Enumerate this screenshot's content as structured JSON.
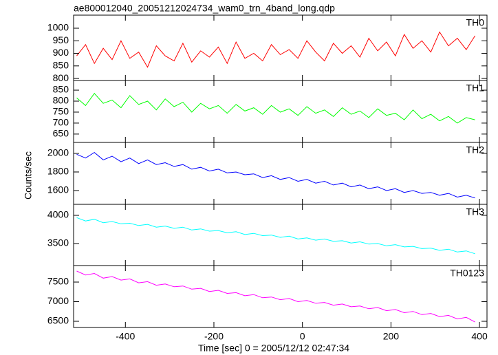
{
  "chart_data": {
    "type": "line",
    "title": "ae800012040_20051212024734_wam0_trn_4band_long.qdp",
    "xlabel": "Time [sec] 0 = 2005/12/12 02:47:34",
    "ylabel": "Counts/sec",
    "xlim": [
      -517,
      417
    ],
    "xticks": [
      -400,
      -200,
      0,
      200,
      400
    ],
    "x": [
      -510,
      -490,
      -470,
      -450,
      -430,
      -410,
      -390,
      -370,
      -350,
      -330,
      -310,
      -290,
      -270,
      -250,
      -230,
      -210,
      -190,
      -170,
      -150,
      -130,
      -110,
      -90,
      -70,
      -50,
      -30,
      -10,
      10,
      30,
      50,
      70,
      90,
      110,
      130,
      150,
      170,
      190,
      210,
      230,
      250,
      270,
      290,
      310,
      330,
      350,
      370,
      390
    ],
    "panels": [
      {
        "name": "TH0",
        "color": "#ff0000",
        "ylim": [
          792,
          1052
        ],
        "yticks": [
          800,
          850,
          900,
          950,
          1000
        ],
        "values": [
          890,
          935,
          860,
          920,
          875,
          950,
          880,
          905,
          845,
          930,
          890,
          870,
          940,
          865,
          910,
          885,
          925,
          860,
          945,
          880,
          900,
          870,
          935,
          895,
          915,
          880,
          950,
          905,
          870,
          940,
          900,
          930,
          885,
          960,
          910,
          945,
          890,
          975,
          920,
          950,
          905,
          985,
          930,
          960,
          915,
          970
        ]
      },
      {
        "name": "TH1",
        "color": "#00ff00",
        "ylim": [
          612,
          894
        ],
        "yticks": [
          650,
          700,
          750,
          800,
          850
        ],
        "values": [
          815,
          780,
          835,
          790,
          805,
          770,
          825,
          785,
          800,
          760,
          810,
          775,
          795,
          750,
          790,
          765,
          780,
          745,
          785,
          755,
          770,
          740,
          780,
          750,
          765,
          735,
          775,
          745,
          760,
          730,
          770,
          740,
          755,
          725,
          765,
          735,
          745,
          715,
          760,
          720,
          740,
          710,
          730,
          700,
          725,
          715
        ]
      },
      {
        "name": "TH2",
        "color": "#0000ff",
        "ylim": [
          1452,
          2118
        ],
        "yticks": [
          1600,
          1800,
          2000
        ],
        "values": [
          1990,
          1950,
          2010,
          1930,
          1970,
          1910,
          1950,
          1890,
          1930,
          1880,
          1900,
          1860,
          1880,
          1830,
          1850,
          1810,
          1830,
          1790,
          1800,
          1770,
          1780,
          1740,
          1760,
          1720,
          1740,
          1700,
          1720,
          1680,
          1700,
          1660,
          1680,
          1640,
          1660,
          1620,
          1640,
          1600,
          1620,
          1580,
          1600,
          1570,
          1580,
          1550,
          1570,
          1530,
          1550,
          1520
        ]
      },
      {
        "name": "TH3",
        "color": "#00ffff",
        "ylim": [
          3110,
          4195
        ],
        "yticks": [
          3500,
          4000
        ],
        "values": [
          3960,
          3900,
          3930,
          3870,
          3890,
          3850,
          3860,
          3820,
          3840,
          3790,
          3810,
          3770,
          3790,
          3740,
          3760,
          3720,
          3730,
          3690,
          3710,
          3660,
          3680,
          3640,
          3650,
          3610,
          3630,
          3580,
          3600,
          3560,
          3580,
          3540,
          3550,
          3510,
          3530,
          3490,
          3500,
          3460,
          3480,
          3440,
          3450,
          3410,
          3420,
          3380,
          3400,
          3350,
          3370,
          3320
        ]
      },
      {
        "name": "TH0123",
        "color": "#ff00ff",
        "ylim": [
          6342,
          7921
        ],
        "yticks": [
          6500,
          7000,
          7500
        ],
        "values": [
          7780,
          7680,
          7720,
          7600,
          7640,
          7550,
          7580,
          7480,
          7510,
          7420,
          7450,
          7380,
          7400,
          7320,
          7340,
          7260,
          7290,
          7210,
          7230,
          7150,
          7180,
          7100,
          7120,
          7050,
          7080,
          7000,
          7030,
          6960,
          6980,
          6910,
          6940,
          6870,
          6890,
          6820,
          6850,
          6770,
          6800,
          6720,
          6750,
          6670,
          6700,
          6620,
          6650,
          6560,
          6600,
          6480
        ]
      }
    ]
  }
}
